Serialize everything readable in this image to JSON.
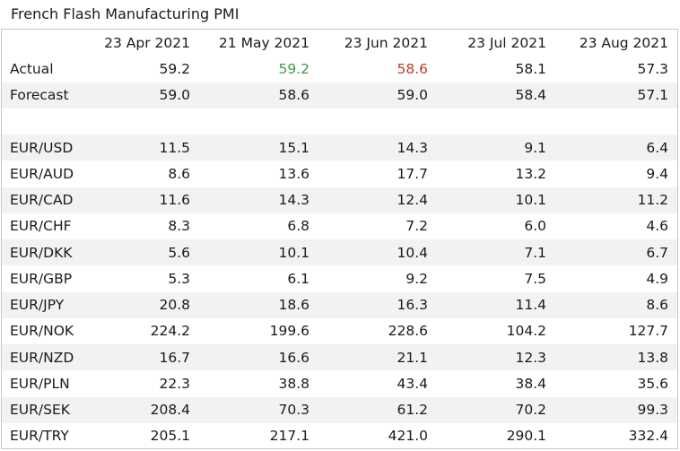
{
  "title": "French Flash Manufacturing PMI",
  "header": [
    "",
    "23 Apr 2021",
    "21 May 2021",
    "23 Jun 2021",
    "23 Jul 2021",
    "23 Aug 2021"
  ],
  "rows": [
    {
      "label": "Actual",
      "values": [
        "59.2",
        "59.2",
        "58.6",
        "58.1",
        "57.3"
      ]
    },
    {
      "label": "Forecast",
      "values": [
        "59.0",
        "58.6",
        "59.0",
        "58.4",
        "57.1"
      ]
    },
    {
      "label": "",
      "values": [
        "",
        "",
        "",
        "",
        ""
      ]
    },
    {
      "label": "EUR/USD",
      "values": [
        "11.5",
        "15.1",
        "14.3",
        "9.1",
        "6.4"
      ]
    },
    {
      "label": "EUR/AUD",
      "values": [
        "8.6",
        "13.6",
        "17.7",
        "13.2",
        "9.4"
      ]
    },
    {
      "label": "EUR/CAD",
      "values": [
        "11.6",
        "14.3",
        "12.4",
        "10.1",
        "11.2"
      ]
    },
    {
      "label": "EUR/CHF",
      "values": [
        "8.3",
        "6.8",
        "7.2",
        "6.0",
        "4.6"
      ]
    },
    {
      "label": "EUR/DKK",
      "values": [
        "5.6",
        "10.1",
        "10.4",
        "7.1",
        "6.7"
      ]
    },
    {
      "label": "EUR/GBP",
      "values": [
        "5.3",
        "6.1",
        "9.2",
        "7.5",
        "4.9"
      ]
    },
    {
      "label": "EUR/JPY",
      "values": [
        "20.8",
        "18.6",
        "16.3",
        "11.4",
        "8.6"
      ]
    },
    {
      "label": "EUR/NOK",
      "values": [
        "224.2",
        "199.6",
        "228.6",
        "104.2",
        "127.7"
      ]
    },
    {
      "label": "EUR/NZD",
      "values": [
        "16.7",
        "16.6",
        "21.1",
        "12.3",
        "13.8"
      ]
    },
    {
      "label": "EUR/PLN",
      "values": [
        "22.3",
        "38.8",
        "43.4",
        "38.4",
        "35.6"
      ]
    },
    {
      "label": "EUR/SEK",
      "values": [
        "208.4",
        "70.3",
        "61.2",
        "70.2",
        "99.3"
      ]
    },
    {
      "label": "EUR/TRY",
      "values": [
        "205.1",
        "217.1",
        "421.0",
        "290.1",
        "332.4"
      ]
    }
  ],
  "colors": {
    "beat": "#3b9a4a",
    "miss": "#c0392b",
    "stripe": "#f2f2f2",
    "border": "#c8c8c8"
  },
  "highlights": {
    "actual_beat_col": 1,
    "actual_miss_col": 2
  }
}
